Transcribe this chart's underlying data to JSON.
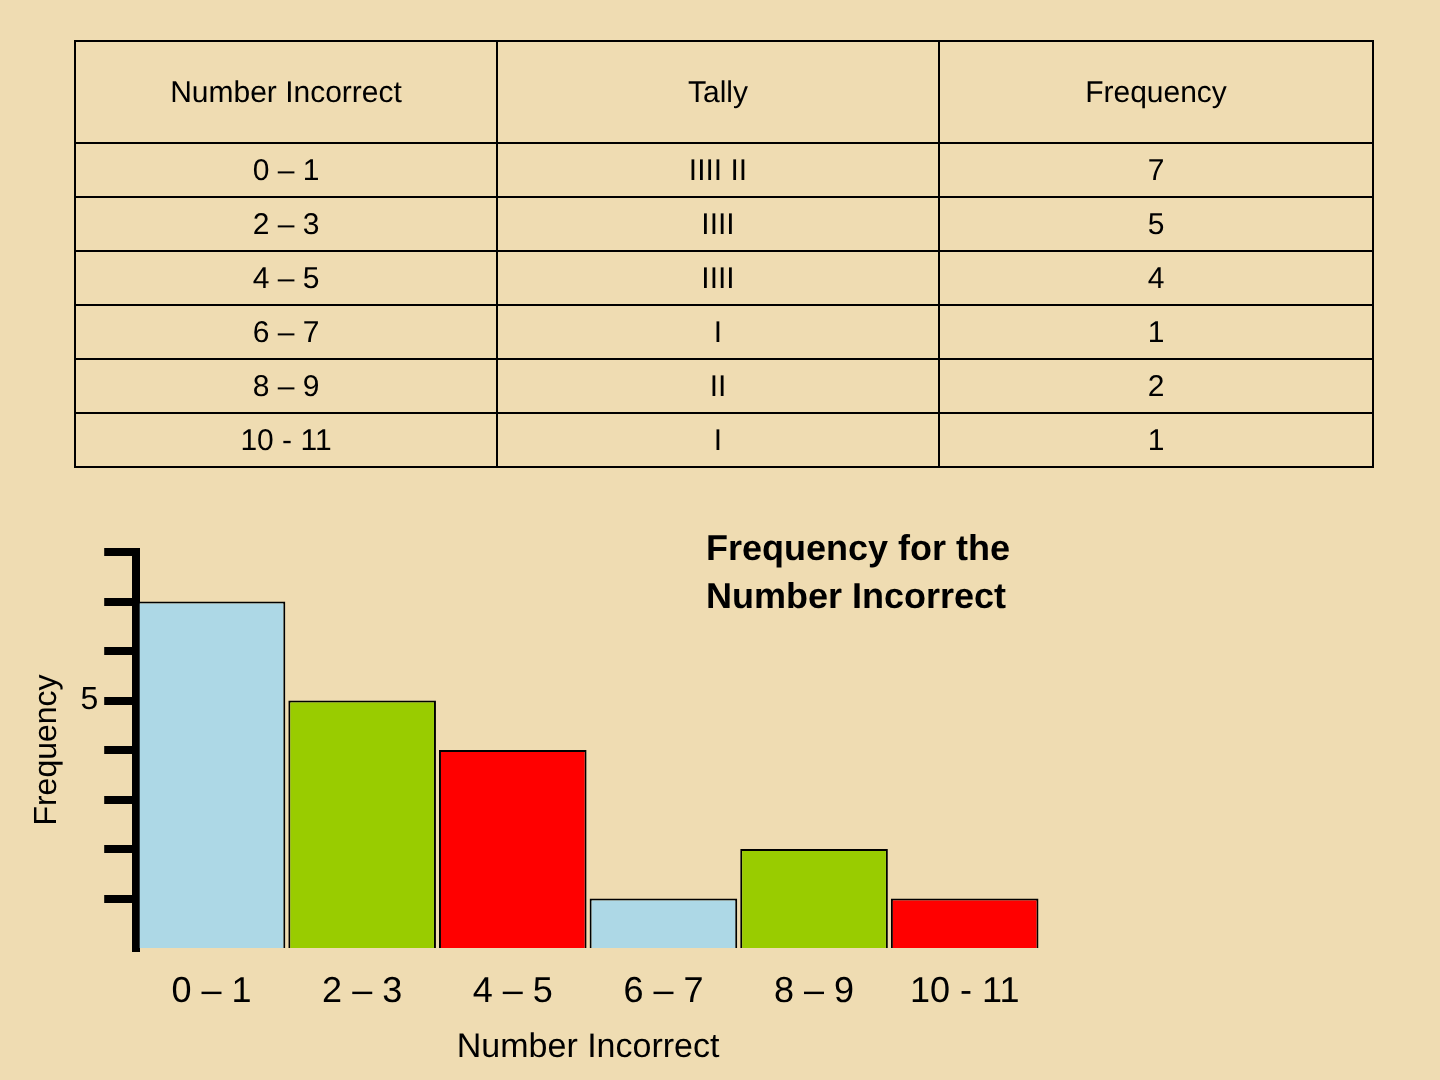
{
  "chart_data": [
    {
      "type": "other",
      "annotations": [
        "Number Incorrect",
        "Tally",
        "Frequency",
        "0 – 1",
        "IIII  II",
        "7",
        "2 – 3",
        "IIII",
        "5",
        "4 – 5",
        "IIII",
        "4",
        "6 – 7",
        "I",
        "1",
        "8 – 9",
        "II",
        "2",
        "10 - 11",
        "I",
        "1"
      ]
    },
    {
      "type": "bar",
      "title": "Frequency for the Number Incorrect",
      "xlabel": "Number Incorrect",
      "ylabel": "Frequency",
      "categories": [
        "0 – 1",
        "2 – 3",
        "4 – 5",
        "6 – 7",
        "8 – 9",
        "10 - 11"
      ],
      "values": [
        7,
        5,
        4,
        1,
        2,
        1
      ],
      "colors": [
        "#add8e6",
        "#99cc00",
        "#ff0000",
        "#add8e6",
        "#99cc00",
        "#ff0000"
      ],
      "ylim": [
        0,
        8
      ],
      "yticks": [
        {
          "value": 1,
          "label": null
        },
        {
          "value": 2,
          "label": null
        },
        {
          "value": 3,
          "label": null
        },
        {
          "value": 4,
          "label": null
        },
        {
          "value": 5,
          "label": "5"
        },
        {
          "value": 6,
          "label": null
        },
        {
          "value": 7,
          "label": null
        },
        {
          "value": 8,
          "label": null
        }
      ]
    }
  ]
}
